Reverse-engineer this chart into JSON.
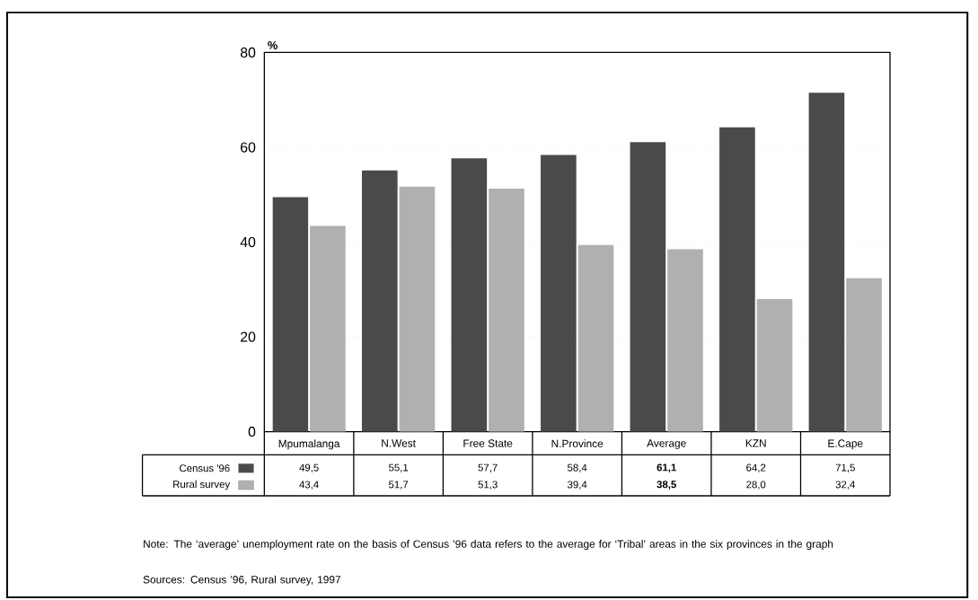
{
  "chart_data": {
    "type": "bar",
    "ylabel": "%",
    "categories": [
      "Mpumalanga",
      "N.West",
      "Free State",
      "N.Province",
      "Average",
      "KZN",
      "E.Cape"
    ],
    "series": [
      {
        "name": "Census '96",
        "color": "#4a4a4a",
        "values": [
          49.5,
          55.1,
          57.7,
          58.4,
          61.1,
          64.2,
          71.5
        ],
        "value_labels": [
          "49,5",
          "55,1",
          "57,7",
          "58,4",
          "**61,1**",
          "64,2",
          "71,5"
        ]
      },
      {
        "name": "Rural survey",
        "color": "#b0b0b0",
        "values": [
          43.4,
          51.7,
          51.3,
          39.4,
          38.5,
          28.0,
          32.4
        ],
        "value_labels": [
          "43,4",
          "51,7",
          "51,3",
          "39,4",
          "**38,5**",
          "28,0",
          "32,4"
        ]
      }
    ],
    "ylim": [
      0,
      80
    ],
    "yticks": [
      0,
      20,
      40,
      60,
      80
    ],
    "grid": "y",
    "legend": "bottom",
    "annotations": [
      "Note: The ‘average’ unemployment rate on the basis of Census ’96 data refers to the average for ‘Tribal’ areas in the six provinces in the graph",
      "Sources: Census ’96, Rural survey, 1997"
    ]
  }
}
